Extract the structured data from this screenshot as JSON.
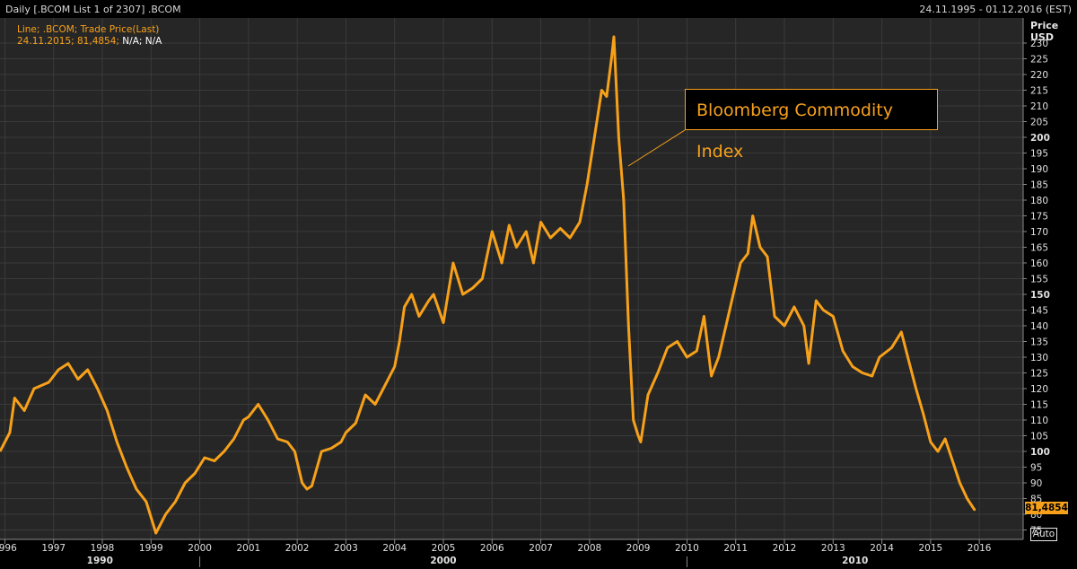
{
  "header": {
    "title": "Daily [.BCOM List 1 of 2307] .BCOM",
    "date_range": "24.11.1995 - 01.12.2016 (EST)"
  },
  "legend": {
    "line1": "Line; .BCOM; Trade Price(Last)",
    "line2_date_value": "24.11.2015; 81,4854;",
    "line2_na": "N/A; N/A"
  },
  "annotation": "Bloomberg Commodity Index",
  "y_axis_header": {
    "title": "Price",
    "unit": "USD"
  },
  "last_price_label": "81,4854",
  "auto_button": "Auto",
  "colors": {
    "line": "#f7a11a",
    "background": "#262626",
    "grid": "#3a3a3a",
    "axis_text": "#e0e0e0"
  },
  "chart_data": {
    "type": "line",
    "series": [
      {
        "x": [
          1995.9,
          1996.1,
          1996.2,
          1996.4,
          1996.6,
          1996.9,
          1997.1,
          1997.3,
          1997.5,
          1997.7,
          1997.9,
          1998.1,
          1998.3,
          1998.5,
          1998.7,
          1998.9,
          1999.0,
          1999.1,
          1999.3,
          1999.5,
          1999.7,
          1999.9,
          2000.1,
          2000.3,
          2000.5,
          2000.7,
          2000.9,
          2001.0,
          2001.2,
          2001.4,
          2001.6,
          2001.8,
          2001.95,
          2002.1,
          2002.2,
          2002.3,
          2002.5,
          2002.7,
          2002.9,
          2003.0,
          2003.2,
          2003.4,
          2003.6,
          2003.8,
          2004.0,
          2004.1,
          2004.2,
          2004.35,
          2004.5,
          2004.7,
          2004.8,
          2005.0,
          2005.2,
          2005.4,
          2005.6,
          2005.8,
          2006.0,
          2006.2,
          2006.35,
          2006.5,
          2006.7,
          2006.85,
          2007.0,
          2007.2,
          2007.4,
          2007.6,
          2007.8,
          2007.95,
          2008.1,
          2008.25,
          2008.35,
          2008.45,
          2008.5,
          2008.6,
          2008.7,
          2008.8,
          2008.9,
          2009.0,
          2009.05,
          2009.2,
          2009.4,
          2009.6,
          2009.8,
          2010.0,
          2010.2,
          2010.35,
          2010.5,
          2010.65,
          2010.8,
          2010.95,
          2011.1,
          2011.25,
          2011.35,
          2011.5,
          2011.65,
          2011.8,
          2012.0,
          2012.2,
          2012.4,
          2012.5,
          2012.65,
          2012.8,
          2013.0,
          2013.2,
          2013.4,
          2013.6,
          2013.8,
          2013.95,
          2014.2,
          2014.4,
          2014.55,
          2014.7,
          2014.85,
          2015.0,
          2015.15,
          2015.3,
          2015.45,
          2015.6,
          2015.75,
          2015.9
        ],
        "y": [
          100,
          106,
          117,
          113,
          120,
          122,
          126,
          128,
          123,
          126,
          120,
          113,
          103,
          95,
          88,
          84,
          79,
          74,
          80,
          84,
          90,
          93,
          98,
          97,
          100,
          104,
          110,
          111,
          115,
          110,
          104,
          103,
          100,
          90,
          88,
          89,
          100,
          101,
          103,
          106,
          109,
          118,
          115,
          121,
          127,
          135,
          146,
          150,
          143,
          148,
          150,
          141,
          160,
          150,
          152,
          155,
          170,
          160,
          172,
          165,
          170,
          160,
          173,
          168,
          171,
          168,
          173,
          185,
          200,
          215,
          213,
          225,
          232,
          200,
          180,
          140,
          110,
          105,
          103,
          118,
          125,
          133,
          135,
          130,
          132,
          143,
          124,
          130,
          140,
          150,
          160,
          163,
          175,
          165,
          162,
          143,
          140,
          146,
          140,
          128,
          148,
          145,
          143,
          132,
          127,
          125,
          124,
          130,
          133,
          138,
          129,
          120,
          112,
          103,
          100,
          104,
          97,
          90,
          85,
          81.5
        ],
        "last_value": 81.4854
      }
    ],
    "x_ticks": [
      "1996",
      "1997",
      "1998",
      "1999",
      "2000",
      "2001",
      "2002",
      "2003",
      "2004",
      "2005",
      "2006",
      "2007",
      "2008",
      "2009",
      "2010",
      "2011",
      "2012",
      "2013",
      "2014",
      "2015",
      "2016"
    ],
    "x_decades": [
      "1990",
      "2000",
      "2010"
    ],
    "y_ticks": [
      "75",
      "80",
      "85",
      "90",
      "95",
      "100",
      "105",
      "110",
      "115",
      "120",
      "125",
      "130",
      "135",
      "140",
      "145",
      "150",
      "155",
      "160",
      "165",
      "170",
      "175",
      "180",
      "185",
      "190",
      "195",
      "200",
      "205",
      "210",
      "215",
      "220",
      "225",
      "230"
    ],
    "ylim": [
      72,
      238
    ],
    "xlim": [
      1995.9,
      2016.9
    ],
    "grid": true
  }
}
